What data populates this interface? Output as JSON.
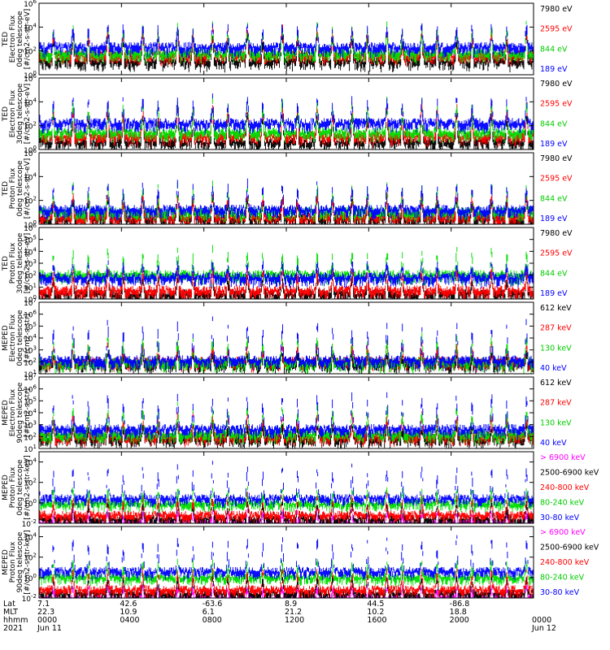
{
  "chart_data": {
    "type": "line",
    "time_range": [
      "2021 Jun 11 0000",
      "2021 Jun 12 0000"
    ],
    "x_axis": {
      "rows": [
        {
          "label": "Lat",
          "values": [
            "7.1",
            "42.6",
            "-63.6",
            "8.9",
            "44.5",
            "-86.8"
          ]
        },
        {
          "label": "MLT",
          "values": [
            "22.3",
            "10.9",
            "6.1",
            "21.2",
            "10.2",
            "18.8"
          ]
        },
        {
          "label": "hhmm",
          "values": [
            "0000",
            "0400",
            "0800",
            "1200",
            "1600",
            "2000",
            "0000"
          ]
        },
        {
          "label": "2021",
          "values": [
            "Jun 11",
            "",
            "",
            "",
            "",
            "",
            "Jun 12"
          ]
        }
      ],
      "hours": [
        0,
        4,
        8,
        12,
        16,
        20,
        24
      ]
    },
    "panels": [
      {
        "ylabel_lines": [
          "TED",
          "Electron Flux",
          "0deg telescope",
          "[#/cm2-s-str-eV]"
        ],
        "ylog": true,
        "yticks": [
          {
            "mant": "10",
            "exp": "0"
          },
          {
            "mant": "10",
            "exp": "2"
          },
          {
            "mant": "10",
            "exp": "4"
          },
          {
            "mant": "10",
            "exp": "6"
          }
        ],
        "ylim_exp": [
          0,
          6
        ],
        "series": [
          {
            "name": "7980 eV",
            "color": "#000000",
            "base": 1.3,
            "peak": 3.8
          },
          {
            "name": "2595 eV",
            "color": "#ff0000",
            "base": 1.8,
            "peak": 4.3
          },
          {
            "name": "844 eV",
            "color": "#00dd00",
            "base": 2.0,
            "peak": 4.5
          },
          {
            "name": "189 eV",
            "color": "#0000ff",
            "base": 2.5,
            "peak": 4.6
          }
        ]
      },
      {
        "ylabel_lines": [
          "TED",
          "Electron Flux",
          "30deg telescope",
          "[#/cm2-s-str-eV]"
        ],
        "ylog": true,
        "yticks": [
          {
            "mant": "10",
            "exp": "0"
          },
          {
            "mant": "10",
            "exp": "2"
          },
          {
            "mant": "10",
            "exp": "4"
          },
          {
            "mant": "10",
            "exp": "6"
          }
        ],
        "ylim_exp": [
          0,
          6
        ],
        "series": [
          {
            "name": "7980 eV",
            "color": "#000000",
            "base": 0.8,
            "peak": 3.6
          },
          {
            "name": "2595 eV",
            "color": "#ff0000",
            "base": 1.3,
            "peak": 4.2
          },
          {
            "name": "844 eV",
            "color": "#00dd00",
            "base": 1.6,
            "peak": 4.4
          },
          {
            "name": "189 eV",
            "color": "#0000ff",
            "base": 2.4,
            "peak": 4.7
          }
        ]
      },
      {
        "ylabel_lines": [
          "TED",
          "Proton Flux",
          "0deg telescope",
          "[#/cm2-s-str-eV]"
        ],
        "ylog": true,
        "yticks": [
          {
            "mant": "10",
            "exp": "0"
          },
          {
            "mant": "10",
            "exp": "2"
          },
          {
            "mant": "10",
            "exp": "4"
          },
          {
            "mant": "10",
            "exp": "6"
          }
        ],
        "ylim_exp": [
          0,
          6
        ],
        "series": [
          {
            "name": "7980 eV",
            "color": "#000000",
            "base": 0.6,
            "peak": 2.6
          },
          {
            "name": "2595 eV",
            "color": "#ff0000",
            "base": 0.8,
            "peak": 2.8
          },
          {
            "name": "844 eV",
            "color": "#00dd00",
            "base": 1.2,
            "peak": 3.6
          },
          {
            "name": "189 eV",
            "color": "#0000ff",
            "base": 1.4,
            "peak": 3.8
          }
        ]
      },
      {
        "ylabel_lines": [
          "TED",
          "Proton Flux",
          "30deg telescope",
          "[#/cm2-s-str-eV]"
        ],
        "ylog": true,
        "yticks": [
          {
            "mant": "10",
            "exp": "0"
          },
          {
            "mant": "10",
            "exp": "1"
          },
          {
            "mant": "10",
            "exp": "2"
          },
          {
            "mant": "10",
            "exp": "3"
          },
          {
            "mant": "10",
            "exp": "4"
          },
          {
            "mant": "10",
            "exp": "5"
          },
          {
            "mant": "10",
            "exp": "6"
          }
        ],
        "ylim_exp": [
          0,
          6
        ],
        "series": [
          {
            "name": "7980 eV",
            "color": "#000000",
            "base": 0.6,
            "peak": 2.4
          },
          {
            "name": "2595 eV",
            "color": "#ff0000",
            "base": 0.9,
            "peak": 2.8
          },
          {
            "name": "844 eV",
            "color": "#00dd00",
            "base": 2.2,
            "peak": 4.4
          },
          {
            "name": "189 eV",
            "color": "#0000ff",
            "base": 2.0,
            "peak": 3.3
          }
        ]
      },
      {
        "ylabel_lines": [
          "MEPED",
          "Electron Flux",
          "0deg telescope",
          "[#/cm2-s-str]"
        ],
        "ylog": true,
        "yticks": [
          {
            "mant": "10",
            "exp": "1"
          },
          {
            "mant": "10",
            "exp": "2"
          },
          {
            "mant": "10",
            "exp": "3"
          },
          {
            "mant": "10",
            "exp": "4"
          },
          {
            "mant": "10",
            "exp": "5"
          },
          {
            "mant": "10",
            "exp": "6"
          },
          {
            "mant": "10",
            "exp": "7"
          }
        ],
        "ylim_exp": [
          1,
          7
        ],
        "series": [
          {
            "name": "612 keV",
            "color": "#000000",
            "base": 2.0,
            "peak": 3.0
          },
          {
            "name": "287 keV",
            "color": "#ff0000",
            "base": 2.2,
            "peak": 3.8
          },
          {
            "name": "130 keV",
            "color": "#00dd00",
            "base": 2.1,
            "peak": 4.3
          },
          {
            "name": "40 keV",
            "color": "#0000ff",
            "base": 2.3,
            "peak": 5.7
          }
        ]
      },
      {
        "ylabel_lines": [
          "MEPED",
          "Electron Flux",
          "90deg telescope",
          "[#/cm2-s-str]"
        ],
        "ylog": true,
        "yticks": [
          {
            "mant": "10",
            "exp": "1"
          },
          {
            "mant": "10",
            "exp": "2"
          },
          {
            "mant": "10",
            "exp": "3"
          },
          {
            "mant": "10",
            "exp": "4"
          },
          {
            "mant": "10",
            "exp": "5"
          },
          {
            "mant": "10",
            "exp": "6"
          },
          {
            "mant": "10",
            "exp": "7"
          }
        ],
        "ylim_exp": [
          1,
          7
        ],
        "series": [
          {
            "name": "612 keV",
            "color": "#000000",
            "base": 2.0,
            "peak": 3.2
          },
          {
            "name": "287 keV",
            "color": "#ff0000",
            "base": 2.2,
            "peak": 4.2
          },
          {
            "name": "130 keV",
            "color": "#00dd00",
            "base": 2.4,
            "peak": 4.8
          },
          {
            "name": "40 keV",
            "color": "#0000ff",
            "base": 2.8,
            "peak": 5.8
          }
        ]
      },
      {
        "ylabel_lines": [
          "MEPED",
          "Proton Flux",
          "0deg telescope",
          "[#/cm2-s-str-keV]"
        ],
        "ylog": true,
        "yticks": [
          {
            "mant": "10",
            "exp": "-2"
          },
          {
            "mant": "10",
            "exp": "0"
          },
          {
            "mant": "10",
            "exp": "2"
          },
          {
            "mant": "10",
            "exp": "4"
          }
        ],
        "ylim_exp": [
          -2,
          5
        ],
        "series": [
          {
            "name": "> 6900 keV",
            "color": "#ff00ff",
            "base": -1.8,
            "peak": -0.6
          },
          {
            "name": "2500-6900 keV",
            "color": "#000000",
            "base": -1.4,
            "peak": 0.5
          },
          {
            "name": "240-800 keV",
            "color": "#ff0000",
            "base": -1.0,
            "peak": 1.0
          },
          {
            "name": "80-240 keV",
            "color": "#00dd00",
            "base": 0.1,
            "peak": 1.6
          },
          {
            "name": "30-80 keV",
            "color": "#0000ff",
            "base": 0.6,
            "peak": 4.0
          }
        ]
      },
      {
        "ylabel_lines": [
          "MEPED",
          "Proton Flux",
          "90deg telescope",
          "[#/cm2-s-str-keV]"
        ],
        "ylog": true,
        "yticks": [
          {
            "mant": "10",
            "exp": "-2"
          },
          {
            "mant": "10",
            "exp": "0"
          },
          {
            "mant": "10",
            "exp": "2"
          },
          {
            "mant": "10",
            "exp": "4"
          }
        ],
        "ylim_exp": [
          -2,
          5
        ],
        "series": [
          {
            "name": "> 6900 keV",
            "color": "#ff00ff",
            "base": -1.8,
            "peak": -0.6
          },
          {
            "name": "2500-6900 keV",
            "color": "#000000",
            "base": -1.4,
            "peak": 0.6
          },
          {
            "name": "240-800 keV",
            "color": "#ff0000",
            "base": -1.0,
            "peak": 1.2
          },
          {
            "name": "80-240 keV",
            "color": "#00dd00",
            "base": 0.2,
            "peak": 1.9
          },
          {
            "name": "30-80 keV",
            "color": "#0000ff",
            "base": 0.8,
            "peak": 4.2
          }
        ]
      }
    ]
  }
}
